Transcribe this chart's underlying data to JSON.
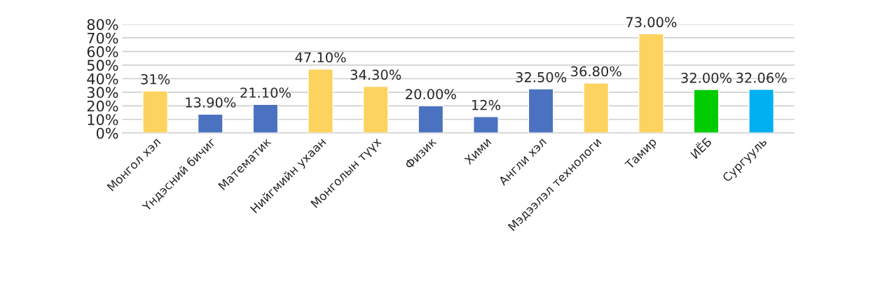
{
  "chart_data": {
    "type": "bar",
    "categories": [
      "Монгол хэл",
      "Үндэсний бичиг",
      "Математик",
      "Нийгмийн ухаан",
      "Монголын түүх",
      "Физик",
      "Хими",
      "Англи хэл",
      "Мэдээлэл технологи",
      "Тамир",
      "ИЁБ",
      "Сургууль"
    ],
    "values": [
      31,
      13.9,
      21.1,
      47.1,
      34.3,
      20,
      12,
      32.5,
      36.8,
      73,
      32,
      32.06
    ],
    "value_labels": [
      "31%",
      "13.90%",
      "21.10%",
      "47.10%",
      "34.30%",
      "20.00%",
      "12%",
      "32.50%",
      "36.80%",
      "73.00%",
      "32.00%",
      "32.06%"
    ],
    "colors": [
      "#fdd35f",
      "#4a72c0",
      "#4a72c0",
      "#fdd35f",
      "#fdd35f",
      "#4a72c0",
      "#4a72c0",
      "#4a72c0",
      "#fdd35f",
      "#fdd35f",
      "#00cc00",
      "#00b0f0"
    ],
    "ylim": [
      0,
      80
    ],
    "yticks": [
      {
        "value": 0,
        "label": "0%"
      },
      {
        "value": 10,
        "label": "10%"
      },
      {
        "value": 20,
        "label": "20%"
      },
      {
        "value": 30,
        "label": "30%"
      },
      {
        "value": 40,
        "label": "40%"
      },
      {
        "value": 50,
        "label": "50%"
      },
      {
        "value": 60,
        "label": "60%"
      },
      {
        "value": 70,
        "label": "70%"
      },
      {
        "value": 80,
        "label": "80%"
      }
    ],
    "grid": "y"
  }
}
